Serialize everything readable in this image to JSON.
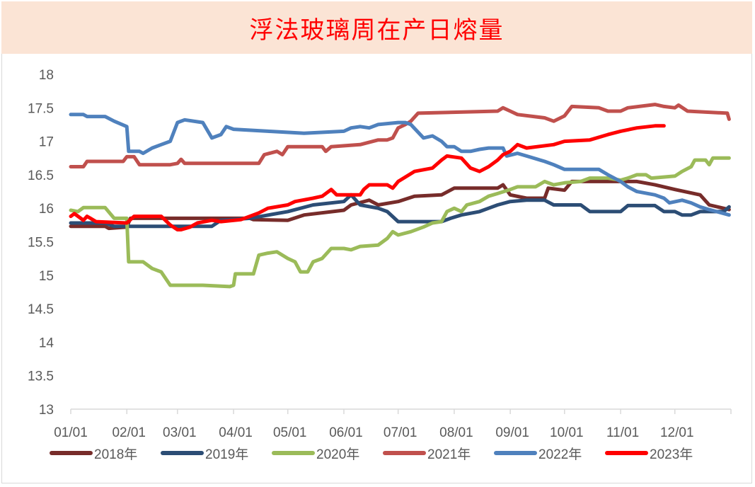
{
  "chart_data": {
    "type": "line",
    "title": "浮法玻璃周在产日熔量",
    "xlabel": "",
    "ylabel": "",
    "ylim": [
      13,
      18
    ],
    "yticks": [
      "13",
      "13.5",
      "14",
      "14.5",
      "15",
      "15.5",
      "16",
      "16.5",
      "17",
      "17.5",
      "18"
    ],
    "xticks": [
      "01/01",
      "02/01",
      "03/01",
      "04/01",
      "05/01",
      "06/01",
      "07/01",
      "08/01",
      "09/01",
      "10/01",
      "11/01",
      "12/01"
    ],
    "grid": false,
    "legend": "bottom",
    "series": [
      {
        "name": "2018年",
        "color": "#772c2a",
        "points": [
          [
            "01/01",
            15.73
          ],
          [
            "01/20",
            15.73
          ],
          [
            "01/22",
            15.7
          ],
          [
            "02/01",
            15.72
          ],
          [
            "02/03",
            15.85
          ],
          [
            "04/10",
            15.85
          ],
          [
            "04/12",
            15.83
          ],
          [
            "05/01",
            15.82
          ],
          [
            "05/10",
            15.9
          ],
          [
            "06/01",
            15.97
          ],
          [
            "06/05",
            16.05
          ],
          [
            "06/15",
            16.12
          ],
          [
            "06/20",
            16.05
          ],
          [
            "07/01",
            16.1
          ],
          [
            "07/10",
            16.18
          ],
          [
            "07/25",
            16.2
          ],
          [
            "08/01",
            16.3
          ],
          [
            "08/25",
            16.3
          ],
          [
            "08/28",
            16.35
          ],
          [
            "09/01",
            16.2
          ],
          [
            "09/10",
            16.15
          ],
          [
            "09/20",
            16.15
          ],
          [
            "09/22",
            16.3
          ],
          [
            "10/01",
            16.27
          ],
          [
            "10/05",
            16.4
          ],
          [
            "11/01",
            16.4
          ],
          [
            "11/10",
            16.4
          ],
          [
            "11/20",
            16.35
          ],
          [
            "12/01",
            16.28
          ],
          [
            "12/15",
            16.2
          ],
          [
            "12/20",
            16.05
          ],
          [
            "12/31",
            15.98
          ]
        ]
      },
      {
        "name": "2019年",
        "color": "#2c4d75",
        "points": [
          [
            "01/01",
            15.78
          ],
          [
            "01/20",
            15.78
          ],
          [
            "01/25",
            15.73
          ],
          [
            "03/20",
            15.73
          ],
          [
            "03/25",
            15.82
          ],
          [
            "04/10",
            15.85
          ],
          [
            "05/01",
            15.95
          ],
          [
            "05/15",
            16.05
          ],
          [
            "06/01",
            16.1
          ],
          [
            "06/05",
            16.2
          ],
          [
            "06/10",
            16.05
          ],
          [
            "06/20",
            16.0
          ],
          [
            "06/25",
            15.95
          ],
          [
            "07/01",
            15.8
          ],
          [
            "07/25",
            15.8
          ],
          [
            "07/30",
            15.85
          ],
          [
            "08/05",
            15.9
          ],
          [
            "08/15",
            15.95
          ],
          [
            "08/20",
            16.0
          ],
          [
            "08/25",
            16.05
          ],
          [
            "09/01",
            16.1
          ],
          [
            "09/10",
            16.12
          ],
          [
            "09/20",
            16.12
          ],
          [
            "09/25",
            16.05
          ],
          [
            "10/10",
            16.05
          ],
          [
            "10/15",
            15.95
          ],
          [
            "11/01",
            15.95
          ],
          [
            "11/05",
            16.04
          ],
          [
            "11/20",
            16.04
          ],
          [
            "11/25",
            15.95
          ],
          [
            "12/01",
            15.95
          ],
          [
            "12/05",
            15.9
          ],
          [
            "12/10",
            15.9
          ],
          [
            "12/15",
            15.95
          ],
          [
            "12/28",
            15.95
          ],
          [
            "12/31",
            16.02
          ]
        ]
      },
      {
        "name": "2020年",
        "color": "#9bbb59",
        "points": [
          [
            "01/01",
            15.97
          ],
          [
            "01/05",
            15.95
          ],
          [
            "01/08",
            16.01
          ],
          [
            "01/20",
            16.01
          ],
          [
            "01/25",
            15.85
          ],
          [
            "02/01",
            15.85
          ],
          [
            "02/02",
            15.2
          ],
          [
            "02/10",
            15.2
          ],
          [
            "02/15",
            15.1
          ],
          [
            "02/20",
            15.05
          ],
          [
            "02/25",
            14.85
          ],
          [
            "03/15",
            14.85
          ],
          [
            "03/30",
            14.83
          ],
          [
            "04/01",
            14.85
          ],
          [
            "04/02",
            15.02
          ],
          [
            "04/12",
            15.02
          ],
          [
            "04/15",
            15.3
          ],
          [
            "04/20",
            15.33
          ],
          [
            "04/25",
            15.35
          ],
          [
            "05/01",
            15.25
          ],
          [
            "05/05",
            15.2
          ],
          [
            "05/08",
            15.05
          ],
          [
            "05/12",
            15.05
          ],
          [
            "05/15",
            15.2
          ],
          [
            "05/20",
            15.25
          ],
          [
            "05/25",
            15.4
          ],
          [
            "06/01",
            15.4
          ],
          [
            "06/05",
            15.38
          ],
          [
            "06/10",
            15.43
          ],
          [
            "06/20",
            15.45
          ],
          [
            "06/25",
            15.55
          ],
          [
            "06/28",
            15.65
          ],
          [
            "07/01",
            15.6
          ],
          [
            "07/08",
            15.65
          ],
          [
            "07/15",
            15.72
          ],
          [
            "07/20",
            15.78
          ],
          [
            "07/25",
            15.8
          ],
          [
            "07/28",
            15.95
          ],
          [
            "08/01",
            16.0
          ],
          [
            "08/05",
            15.95
          ],
          [
            "08/08",
            16.05
          ],
          [
            "08/15",
            16.1
          ],
          [
            "08/20",
            16.18
          ],
          [
            "08/25",
            16.22
          ],
          [
            "09/01",
            16.28
          ],
          [
            "09/05",
            16.32
          ],
          [
            "09/15",
            16.32
          ],
          [
            "09/20",
            16.4
          ],
          [
            "09/25",
            16.35
          ],
          [
            "10/01",
            16.38
          ],
          [
            "10/10",
            16.4
          ],
          [
            "10/15",
            16.45
          ],
          [
            "10/25",
            16.45
          ],
          [
            "11/01",
            16.42
          ],
          [
            "11/05",
            16.45
          ],
          [
            "11/10",
            16.5
          ],
          [
            "11/15",
            16.5
          ],
          [
            "11/18",
            16.45
          ],
          [
            "12/01",
            16.48
          ],
          [
            "12/05",
            16.55
          ],
          [
            "12/10",
            16.62
          ],
          [
            "12/12",
            16.72
          ],
          [
            "12/18",
            16.72
          ],
          [
            "12/20",
            16.65
          ],
          [
            "12/22",
            16.75
          ],
          [
            "12/31",
            16.75
          ]
        ]
      },
      {
        "name": "2021年",
        "color": "#c0504d",
        "points": [
          [
            "01/01",
            16.62
          ],
          [
            "01/08",
            16.62
          ],
          [
            "01/10",
            16.7
          ],
          [
            "01/30",
            16.7
          ],
          [
            "02/01",
            16.77
          ],
          [
            "02/05",
            16.77
          ],
          [
            "02/08",
            16.65
          ],
          [
            "02/25",
            16.65
          ],
          [
            "03/01",
            16.67
          ],
          [
            "03/03",
            16.73
          ],
          [
            "03/05",
            16.67
          ],
          [
            "04/15",
            16.67
          ],
          [
            "04/18",
            16.8
          ],
          [
            "04/25",
            16.85
          ],
          [
            "04/28",
            16.8
          ],
          [
            "05/01",
            16.92
          ],
          [
            "05/20",
            16.92
          ],
          [
            "05/22",
            16.85
          ],
          [
            "05/25",
            16.92
          ],
          [
            "06/10",
            16.95
          ],
          [
            "06/20",
            17.02
          ],
          [
            "06/25",
            17.02
          ],
          [
            "06/28",
            17.05
          ],
          [
            "07/01",
            17.2
          ],
          [
            "07/05",
            17.25
          ],
          [
            "07/08",
            17.3
          ],
          [
            "07/12",
            17.42
          ],
          [
            "08/25",
            17.45
          ],
          [
            "08/28",
            17.5
          ],
          [
            "09/01",
            17.45
          ],
          [
            "09/05",
            17.4
          ],
          [
            "09/20",
            17.35
          ],
          [
            "09/25",
            17.3
          ],
          [
            "10/01",
            17.38
          ],
          [
            "10/05",
            17.52
          ],
          [
            "10/20",
            17.5
          ],
          [
            "10/25",
            17.45
          ],
          [
            "11/01",
            17.45
          ],
          [
            "11/05",
            17.5
          ],
          [
            "11/20",
            17.55
          ],
          [
            "11/25",
            17.52
          ],
          [
            "12/01",
            17.5
          ],
          [
            "12/03",
            17.54
          ],
          [
            "12/08",
            17.45
          ],
          [
            "12/30",
            17.42
          ],
          [
            "12/31",
            17.33
          ]
        ]
      },
      {
        "name": "2022年",
        "color": "#4f81bd",
        "points": [
          [
            "01/01",
            17.4
          ],
          [
            "01/08",
            17.4
          ],
          [
            "01/10",
            17.37
          ],
          [
            "01/20",
            17.37
          ],
          [
            "01/25",
            17.3
          ],
          [
            "02/01",
            17.22
          ],
          [
            "02/02",
            16.85
          ],
          [
            "02/08",
            16.85
          ],
          [
            "02/10",
            16.82
          ],
          [
            "02/15",
            16.9
          ],
          [
            "02/20",
            16.95
          ],
          [
            "02/25",
            17.0
          ],
          [
            "03/01",
            17.28
          ],
          [
            "03/05",
            17.32
          ],
          [
            "03/15",
            17.28
          ],
          [
            "03/20",
            17.05
          ],
          [
            "03/25",
            17.1
          ],
          [
            "03/28",
            17.22
          ],
          [
            "04/01",
            17.18
          ],
          [
            "04/20",
            17.15
          ],
          [
            "05/10",
            17.12
          ],
          [
            "06/01",
            17.15
          ],
          [
            "06/05",
            17.2
          ],
          [
            "06/10",
            17.22
          ],
          [
            "06/15",
            17.2
          ],
          [
            "06/20",
            17.25
          ],
          [
            "07/01",
            17.28
          ],
          [
            "07/05",
            17.28
          ],
          [
            "07/08",
            17.25
          ],
          [
            "07/15",
            17.05
          ],
          [
            "07/20",
            17.08
          ],
          [
            "07/25",
            17.0
          ],
          [
            "07/28",
            16.92
          ],
          [
            "08/01",
            16.92
          ],
          [
            "08/05",
            16.85
          ],
          [
            "08/10",
            16.85
          ],
          [
            "08/15",
            16.88
          ],
          [
            "08/20",
            16.9
          ],
          [
            "08/28",
            16.9
          ],
          [
            "08/30",
            16.78
          ],
          [
            "09/05",
            16.82
          ],
          [
            "09/10",
            16.78
          ],
          [
            "09/20",
            16.7
          ],
          [
            "09/25",
            16.65
          ],
          [
            "10/01",
            16.58
          ],
          [
            "10/20",
            16.58
          ],
          [
            "10/25",
            16.5
          ],
          [
            "11/01",
            16.4
          ],
          [
            "11/05",
            16.32
          ],
          [
            "11/10",
            16.25
          ],
          [
            "11/20",
            16.2
          ],
          [
            "11/25",
            16.15
          ],
          [
            "11/28",
            16.08
          ],
          [
            "12/05",
            16.12
          ],
          [
            "12/10",
            16.08
          ],
          [
            "12/15",
            16.02
          ],
          [
            "12/20",
            15.98
          ],
          [
            "12/31",
            15.9
          ]
        ]
      },
      {
        "name": "2023年",
        "color": "#ff0000",
        "points": [
          [
            "01/01",
            15.88
          ],
          [
            "01/03",
            15.92
          ],
          [
            "01/08",
            15.82
          ],
          [
            "01/10",
            15.88
          ],
          [
            "01/15",
            15.8
          ],
          [
            "02/01",
            15.78
          ],
          [
            "02/05",
            15.88
          ],
          [
            "02/20",
            15.88
          ],
          [
            "02/25",
            15.75
          ],
          [
            "03/01",
            15.68
          ],
          [
            "03/03",
            15.68
          ],
          [
            "03/08",
            15.72
          ],
          [
            "03/12",
            15.78
          ],
          [
            "03/20",
            15.82
          ],
          [
            "03/25",
            15.8
          ],
          [
            "04/05",
            15.83
          ],
          [
            "04/10",
            15.88
          ],
          [
            "04/15",
            15.93
          ],
          [
            "04/20",
            16.0
          ],
          [
            "05/01",
            16.05
          ],
          [
            "05/05",
            16.1
          ],
          [
            "05/15",
            16.15
          ],
          [
            "05/20",
            16.18
          ],
          [
            "05/25",
            16.28
          ],
          [
            "05/28",
            16.2
          ],
          [
            "06/10",
            16.2
          ],
          [
            "06/12",
            16.28
          ],
          [
            "06/15",
            16.35
          ],
          [
            "06/25",
            16.35
          ],
          [
            "06/28",
            16.3
          ],
          [
            "07/01",
            16.4
          ],
          [
            "07/10",
            16.55
          ],
          [
            "07/20",
            16.6
          ],
          [
            "07/25",
            16.72
          ],
          [
            "07/28",
            16.78
          ],
          [
            "08/05",
            16.75
          ],
          [
            "08/10",
            16.6
          ],
          [
            "08/15",
            16.55
          ],
          [
            "08/20",
            16.62
          ],
          [
            "08/25",
            16.72
          ],
          [
            "08/28",
            16.8
          ],
          [
            "09/01",
            16.85
          ],
          [
            "09/05",
            16.95
          ],
          [
            "09/10",
            16.9
          ],
          [
            "09/25",
            16.95
          ],
          [
            "10/01",
            17.0
          ],
          [
            "10/15",
            17.02
          ],
          [
            "10/25",
            17.1
          ],
          [
            "11/01",
            17.15
          ],
          [
            "11/10",
            17.2
          ],
          [
            "11/20",
            17.23
          ],
          [
            "11/25",
            17.23
          ]
        ]
      }
    ]
  }
}
